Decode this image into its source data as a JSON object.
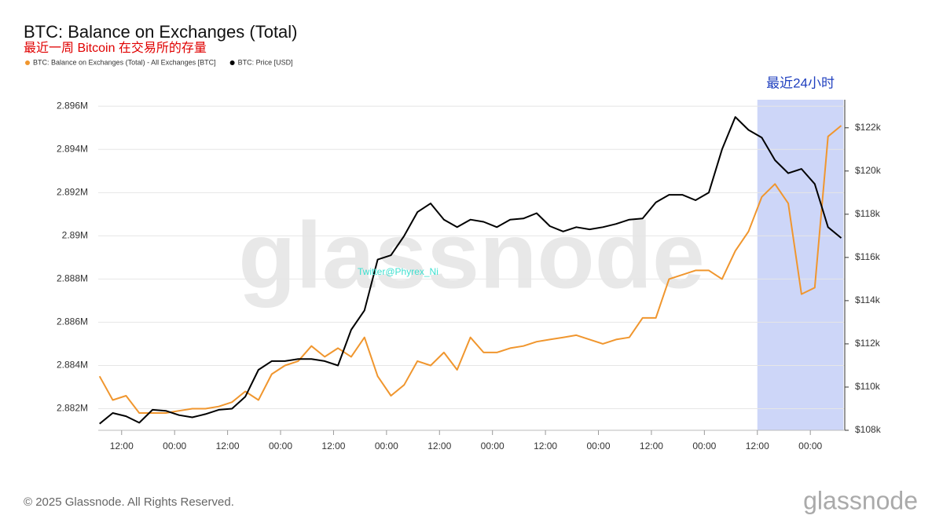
{
  "chart_data": {
    "type": "line",
    "title": "BTC: Balance on Exchanges (Total)",
    "subtitle": "最近一周 Bitcoin 在交易所的存量",
    "watermark": "glassnode",
    "annotation": "Twitter@Phyrex_Ni",
    "footer": "© 2025 Glassnode. All Rights Reserved.",
    "logo": "glassnode",
    "highlight": {
      "label": "最近24小时",
      "x": [
        132,
        151.5
      ],
      "color": "#cdd6f8"
    },
    "x": [
      -17,
      -14,
      -11,
      -8,
      -5,
      -2,
      1,
      4,
      7,
      10,
      13,
      16,
      19,
      22,
      25,
      28,
      31,
      34,
      37,
      40,
      43,
      46,
      49,
      52,
      55,
      58,
      61,
      64,
      67,
      70,
      73,
      76,
      79,
      82,
      85,
      88,
      91,
      94,
      97,
      100,
      103,
      106,
      109,
      112,
      115,
      118,
      121,
      124,
      127,
      130,
      133,
      136,
      139,
      142,
      145,
      148,
      151
    ],
    "xlim": [
      -17.3,
      151.8
    ],
    "xticks": [
      {
        "value": -12,
        "label": "12:00"
      },
      {
        "value": 0,
        "label": "00:00"
      },
      {
        "value": 12,
        "label": "12:00"
      },
      {
        "value": 24,
        "label": "00:00"
      },
      {
        "value": 36,
        "label": "12:00"
      },
      {
        "value": 48,
        "label": "00:00"
      },
      {
        "value": 60,
        "label": "12:00"
      },
      {
        "value": 72,
        "label": "00:00"
      },
      {
        "value": 84,
        "label": "12:00"
      },
      {
        "value": 96,
        "label": "00:00"
      },
      {
        "value": 108,
        "label": "12:00"
      },
      {
        "value": 120,
        "label": "00:00"
      },
      {
        "value": 132,
        "label": "12:00"
      },
      {
        "value": 144,
        "label": "00:00"
      }
    ],
    "ylim": [
      2881000,
      2896300
    ],
    "yticks": [
      {
        "value": 2882000,
        "label": "2.882M"
      },
      {
        "value": 2884000,
        "label": "2.884M"
      },
      {
        "value": 2886000,
        "label": "2.886M"
      },
      {
        "value": 2888000,
        "label": "2.888M"
      },
      {
        "value": 2890000,
        "label": "2.89M"
      },
      {
        "value": 2892000,
        "label": "2.892M"
      },
      {
        "value": 2894000,
        "label": "2.894M"
      },
      {
        "value": 2896000,
        "label": "2.896M"
      }
    ],
    "y2lim": [
      108000,
      123300
    ],
    "y2ticks": [
      {
        "value": 108000,
        "label": "$108k"
      },
      {
        "value": 110000,
        "label": "$110k"
      },
      {
        "value": 112000,
        "label": "$112k"
      },
      {
        "value": 114000,
        "label": "$114k"
      },
      {
        "value": 116000,
        "label": "$116k"
      },
      {
        "value": 118000,
        "label": "$118k"
      },
      {
        "value": 120000,
        "label": "$120k"
      },
      {
        "value": 122000,
        "label": "$122k"
      }
    ],
    "grid": true,
    "series": [
      {
        "name": "BTC: Balance on Exchanges (Total) - All Exchanges [BTC]",
        "color": "#f0962e",
        "axis": "y",
        "values": [
          2883500,
          2882400,
          2882600,
          2881800,
          2881800,
          2881800,
          2881900,
          2882000,
          2882000,
          2882100,
          2882300,
          2882800,
          2882400,
          2883600,
          2884000,
          2884200,
          2884900,
          2884400,
          2884800,
          2884400,
          2885300,
          2883500,
          2882600,
          2883100,
          2884200,
          2884000,
          2884600,
          2883800,
          2885300,
          2884600,
          2884600,
          2884800,
          2884900,
          2885100,
          2885200,
          2885300,
          2885400,
          2885200,
          2885000,
          2885200,
          2885300,
          2886200,
          2886200,
          2888000,
          2888200,
          2888400,
          2888400,
          2888000,
          2889300,
          2890200,
          2891800,
          2892400,
          2891500,
          2887300,
          2887600,
          2894600,
          2895100
        ]
      },
      {
        "name": "BTC: Price [USD]",
        "color": "#000000",
        "axis": "y2",
        "values": [
          108300,
          108800,
          108650,
          108350,
          108950,
          108900,
          108700,
          108600,
          108750,
          108950,
          109000,
          109550,
          110800,
          111200,
          111200,
          111300,
          111300,
          111200,
          111000,
          112650,
          113550,
          115900,
          116100,
          117000,
          118100,
          118500,
          117750,
          117400,
          117750,
          117650,
          117400,
          117750,
          117800,
          118050,
          117450,
          117200,
          117400,
          117300,
          117400,
          117550,
          117750,
          117800,
          118550,
          118900,
          118900,
          118650,
          119000,
          121000,
          122500,
          121900,
          121550,
          120500,
          119900,
          120100,
          119400,
          117400,
          116900
        ]
      }
    ]
  }
}
